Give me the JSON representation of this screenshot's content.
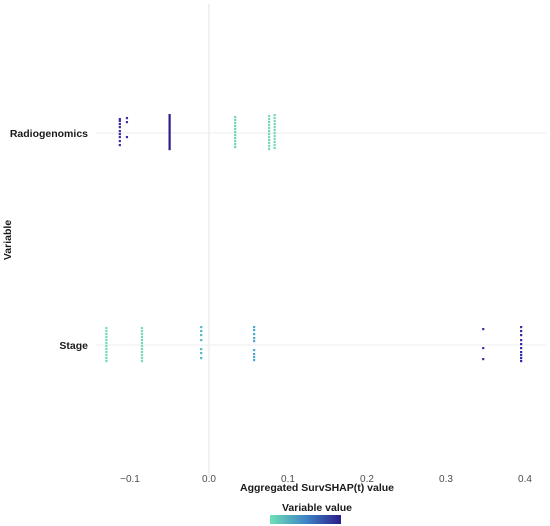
{
  "chart_data": {
    "type": "scatter",
    "xlabel": "Aggregated SurvSHAP(t) value",
    "ylabel": "Variable",
    "xlim": [
      -0.145,
      0.425
    ],
    "xticks": [
      {
        "value": -0.1,
        "label": "−0.1"
      },
      {
        "value": 0.0,
        "label": "0.0"
      },
      {
        "value": 0.1,
        "label": "0.1"
      },
      {
        "value": 0.2,
        "label": "0.2"
      },
      {
        "value": 0.3,
        "label": "0.3"
      },
      {
        "value": 0.4,
        "label": "0.4"
      }
    ],
    "categories": [
      "Radiogenomics",
      "Stage"
    ],
    "grid": true,
    "legend": {
      "title": "Variable value",
      "position": "bottom",
      "colors": [
        "#6fe0b4",
        "#2a1d8a"
      ]
    },
    "series": [
      {
        "category": "Radiogenomics",
        "points": [
          {
            "x": -0.113,
            "offsets": [
              -0.14,
              -0.12,
              -0.09,
              -0.06,
              -0.02,
              0.01,
              0.04,
              0.08,
              0.12
            ],
            "color": "#3a2da0"
          },
          {
            "x": -0.104,
            "offsets": [
              -0.15,
              -0.11,
              0.04
            ],
            "color": "#3b30a4"
          },
          {
            "x": -0.05,
            "offsets": [
              -0.18,
              -0.16,
              -0.14,
              -0.12,
              -0.1,
              -0.08,
              -0.06,
              -0.04,
              -0.02,
              0.0,
              0.02,
              0.04,
              0.06,
              0.08,
              0.1,
              0.12,
              0.14,
              0.16
            ],
            "color": "#2b1f8f"
          },
          {
            "x": 0.033,
            "offsets": [
              -0.16,
              -0.13,
              -0.1,
              -0.07,
              -0.04,
              -0.01,
              0.02,
              0.05,
              0.08,
              0.11,
              0.14
            ],
            "color": "#6fd8b0"
          },
          {
            "x": 0.076,
            "offsets": [
              -0.17,
              -0.14,
              -0.11,
              -0.08,
              -0.05,
              -0.02,
              0.01,
              0.04,
              0.07,
              0.1,
              0.13,
              0.16
            ],
            "color": "#77d9b2"
          },
          {
            "x": 0.083,
            "offsets": [
              -0.18,
              -0.15,
              -0.12,
              -0.09,
              -0.06,
              -0.03,
              0.0,
              0.03,
              0.06,
              0.09,
              0.12,
              0.15
            ],
            "color": "#7cd8b3"
          }
        ]
      },
      {
        "category": "Stage",
        "points": [
          {
            "x": -0.13,
            "offsets": [
              -0.17,
              -0.14,
              -0.11,
              -0.08,
              -0.05,
              -0.02,
              0.01,
              0.04,
              0.07,
              0.1,
              0.13,
              0.16
            ],
            "color": "#72dcb3"
          },
          {
            "x": -0.085,
            "offsets": [
              -0.17,
              -0.14,
              -0.11,
              -0.08,
              -0.05,
              -0.02,
              0.01,
              0.04,
              0.07,
              0.1,
              0.13,
              0.16
            ],
            "color": "#7ad9b4"
          },
          {
            "x": -0.01,
            "offsets": [
              -0.18,
              -0.14,
              -0.1,
              -0.05,
              0.04,
              0.08,
              0.13
            ],
            "color": "#52b8c4"
          },
          {
            "x": 0.057,
            "offsets": [
              -0.18,
              -0.15,
              -0.11,
              -0.07,
              -0.04,
              0.05,
              0.09,
              0.12,
              0.15
            ],
            "color": "#4aaad0"
          },
          {
            "x": 0.347,
            "offsets": [
              -0.16,
              0.03,
              0.14
            ],
            "color": "#3a2ea6"
          },
          {
            "x": 0.395,
            "offsets": [
              -0.18,
              -0.14,
              -0.1,
              -0.05,
              -0.01,
              0.03,
              0.07,
              0.1,
              0.13,
              0.16
            ],
            "color": "#2f29a8"
          }
        ]
      }
    ]
  }
}
